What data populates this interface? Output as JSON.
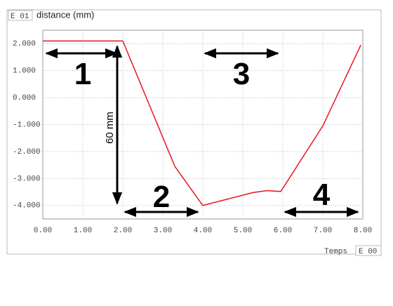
{
  "chart_data": {
    "type": "line",
    "title": "distance (mm)",
    "y_axis_tag": "E 01",
    "x_axis_label": "Temps",
    "x_axis_tag": "E 00",
    "x": [
      0,
      2.0,
      3.3,
      4.0,
      5.25,
      5.6,
      5.95,
      7.0,
      7.95
    ],
    "values": [
      2.1,
      2.1,
      -2.55,
      -4.0,
      -3.52,
      -3.45,
      -3.48,
      -1.05,
      1.95
    ],
    "color": "#e8161b",
    "xlim": [
      0,
      8
    ],
    "ylim": [
      -4.5,
      2.5
    ],
    "xticks": [
      {
        "value": 0,
        "label": "0.00"
      },
      {
        "value": 1,
        "label": "1.00"
      },
      {
        "value": 2,
        "label": "2.00"
      },
      {
        "value": 3,
        "label": "3.00"
      },
      {
        "value": 4,
        "label": "4.00"
      },
      {
        "value": 5,
        "label": "5.00"
      },
      {
        "value": 6,
        "label": "6.00"
      },
      {
        "value": 7,
        "label": "7.00"
      },
      {
        "value": 8,
        "label": "8.00"
      }
    ],
    "yticks": [
      {
        "value": 2,
        "label": "2.000"
      },
      {
        "value": 1,
        "label": "1.000"
      },
      {
        "value": 0,
        "label": "0.000"
      },
      {
        "value": -1,
        "label": "-1.000"
      },
      {
        "value": -2,
        "label": "-2.000"
      },
      {
        "value": -3,
        "label": "-3.000"
      },
      {
        "value": -4,
        "label": "-4.000"
      }
    ],
    "grid": true,
    "annotations": [
      "1",
      "2",
      "3",
      "4",
      "60 mm"
    ]
  }
}
